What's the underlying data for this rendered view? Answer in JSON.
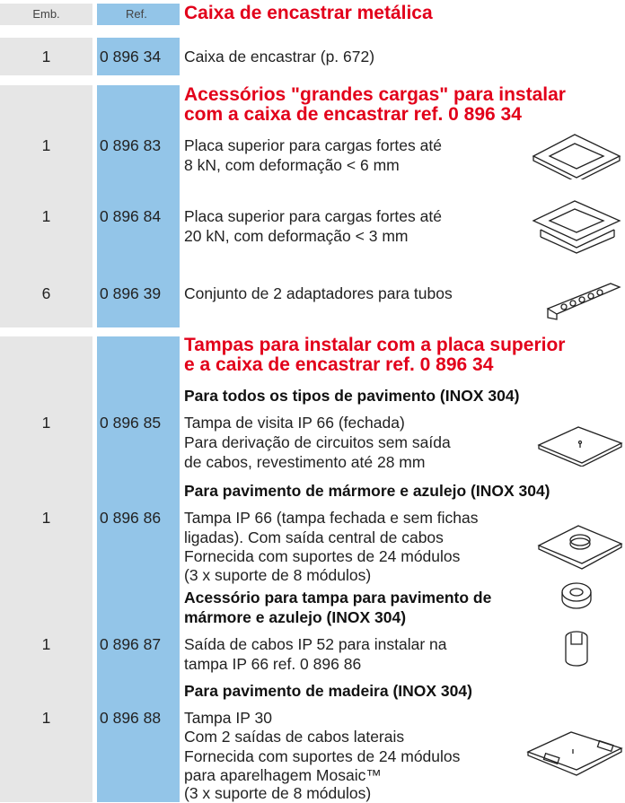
{
  "header": {
    "emb": "Emb.",
    "ref": "Ref.",
    "title": "Caixa de encastrar metálica"
  },
  "sections": [
    {
      "rows": [
        {
          "qty": 1,
          "ref": "0 896 34",
          "lines": [
            "Caixa de encastrar (p. 672)"
          ]
        }
      ]
    },
    {
      "title": [
        "Acessórios \"grandes cargas\" para instalar",
        "com a caixa de encastrar ref. 0 896 34"
      ],
      "rows": [
        {
          "qty": 1,
          "ref": "0 896 83",
          "lines": [
            "Placa superior para cargas fortes até",
            "8 kN, com deformação < 6 mm"
          ]
        },
        {
          "qty": 1,
          "ref": "0 896 84",
          "lines": [
            "Placa superior para cargas fortes até",
            "20 kN, com deformação < 3 mm"
          ]
        },
        {
          "qty": 6,
          "ref": "0 896 39",
          "lines": [
            "Conjunto de 2 adaptadores para tubos"
          ]
        }
      ]
    },
    {
      "title": [
        "Tampas para instalar com a placa superior",
        "e a caixa de encastrar ref. 0 896 34"
      ],
      "rows": [
        {
          "heading": [
            "Para todos os tipos de pavimento (INOX 304)"
          ],
          "qty": 1,
          "ref": "0 896 85",
          "lines": [
            "Tampa de visita IP 66 (fechada)",
            "Para derivação de circuitos sem saída",
            "de cabos, revestimento até 28 mm"
          ]
        },
        {
          "heading": [
            "Para pavimento de mármore e azulejo (INOX 304)"
          ],
          "qty": 1,
          "ref": "0 896 86",
          "lines": [
            "Tampa IP 66 (tampa fechada e sem fichas",
            "ligadas). Com saída central de cabos",
            "Fornecida com suportes de 24 módulos",
            "(3 x suporte de 8 módulos)"
          ]
        },
        {
          "heading": [
            "Acessório para tampa para pavimento de",
            "mármore e azulejo (INOX 304)"
          ],
          "qty": 1,
          "ref": "0 896 87",
          "lines": [
            "Saída de cabos IP 52 para instalar na",
            "tampa IP 66 ref. 0 896 86"
          ]
        },
        {
          "heading": [
            "Para pavimento de madeira (INOX 304)"
          ],
          "qty": 1,
          "ref": "0 896 88",
          "lines": [
            "Tampa IP 30",
            "Com 2 saídas de cabos laterais",
            "Fornecida com suportes de 24 módulos",
            "para aparelhagem Mosaic™",
            "(3 x suporte de 8 módulos)"
          ]
        }
      ]
    }
  ]
}
